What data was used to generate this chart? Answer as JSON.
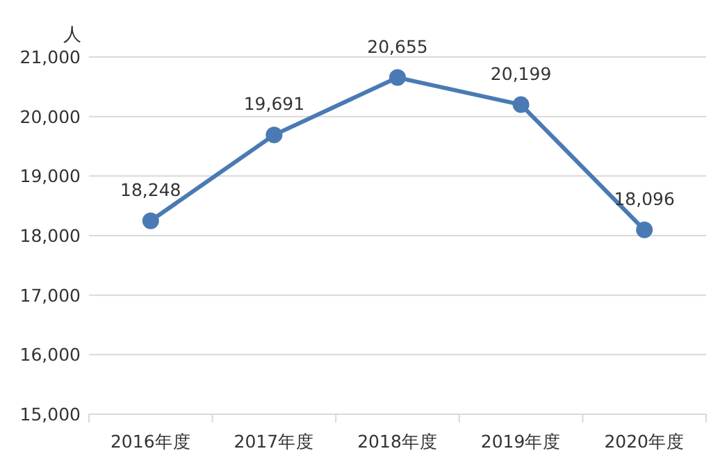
{
  "chart_data": {
    "type": "line",
    "ylabel": "人",
    "categories": [
      "2016年度",
      "2017年度",
      "2018年度",
      "2019年度",
      "2020年度"
    ],
    "series": [
      {
        "color": "#4a7ab4",
        "values": [
          18248,
          19691,
          20655,
          20199,
          18096
        ],
        "value_labels": [
          "18,248",
          "19,691",
          "20,655",
          "20,199",
          "18,096"
        ]
      }
    ],
    "ylim": [
      15000,
      21000
    ],
    "yticks": [
      {
        "value": 15000,
        "label": "15,000"
      },
      {
        "value": 16000,
        "label": "16,000"
      },
      {
        "value": 17000,
        "label": "17,000"
      },
      {
        "value": 18000,
        "label": "18,000"
      },
      {
        "value": 19000,
        "label": "19,000"
      },
      {
        "value": 20000,
        "label": "20,000"
      },
      {
        "value": 21000,
        "label": "21,000"
      }
    ],
    "grid": "y",
    "marker": "circle",
    "line_style": "solid"
  }
}
